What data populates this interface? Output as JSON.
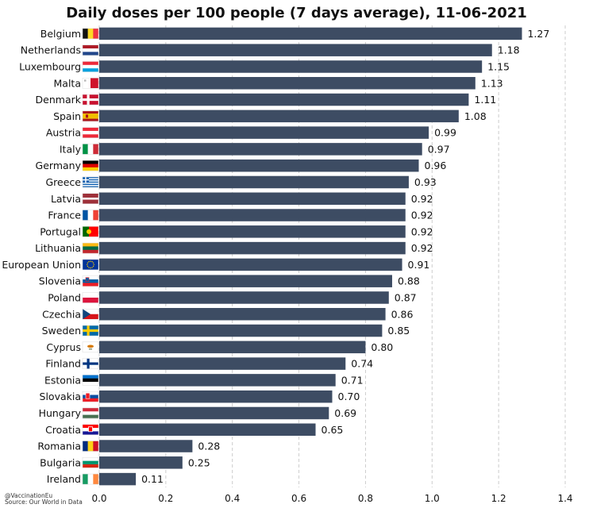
{
  "chart_data": {
    "type": "bar",
    "orientation": "horizontal",
    "title": "Daily doses per 100 people (7 days average), 11-06-2021",
    "xlabel": "",
    "ylabel": "",
    "xlim": [
      0,
      1.4
    ],
    "x_ticks": [
      "0.0",
      "0.2",
      "0.4",
      "0.6",
      "0.8",
      "1.0",
      "1.2",
      "1.4"
    ],
    "grid": "vertical dashed",
    "bar_color": "#3d4c63",
    "categories": [
      "Belgium",
      "Netherlands",
      "Luxembourg",
      "Malta",
      "Denmark",
      "Spain",
      "Austria",
      "Italy",
      "Germany",
      "Greece",
      "Latvia",
      "France",
      "Portugal",
      "Lithuania",
      "European Union",
      "Slovenia",
      "Poland",
      "Czechia",
      "Sweden",
      "Cyprus",
      "Finland",
      "Estonia",
      "Slovakia",
      "Hungary",
      "Croatia",
      "Romania",
      "Bulgaria",
      "Ireland"
    ],
    "values": [
      1.27,
      1.18,
      1.15,
      1.13,
      1.11,
      1.08,
      0.99,
      0.97,
      0.96,
      0.93,
      0.92,
      0.92,
      0.92,
      0.92,
      0.91,
      0.88,
      0.87,
      0.86,
      0.85,
      0.8,
      0.74,
      0.71,
      0.7,
      0.69,
      0.65,
      0.28,
      0.25,
      0.11
    ],
    "value_labels": [
      "1.27",
      "1.18",
      "1.15",
      "1.13",
      "1.11",
      "1.08",
      "0.99",
      "0.97",
      "0.96",
      "0.93",
      "0.92",
      "0.92",
      "0.92",
      "0.92",
      "0.91",
      "0.88",
      "0.87",
      "0.86",
      "0.85",
      "0.80",
      "0.74",
      "0.71",
      "0.70",
      "0.69",
      "0.65",
      "0.28",
      "0.25",
      "0.11"
    ],
    "flag_icons": [
      "belgium-flag-icon",
      "netherlands-flag-icon",
      "luxembourg-flag-icon",
      "malta-flag-icon",
      "denmark-flag-icon",
      "spain-flag-icon",
      "austria-flag-icon",
      "italy-flag-icon",
      "germany-flag-icon",
      "greece-flag-icon",
      "latvia-flag-icon",
      "france-flag-icon",
      "portugal-flag-icon",
      "lithuania-flag-icon",
      "european-union-flag-icon",
      "slovenia-flag-icon",
      "poland-flag-icon",
      "czechia-flag-icon",
      "sweden-flag-icon",
      "cyprus-flag-icon",
      "finland-flag-icon",
      "estonia-flag-icon",
      "slovakia-flag-icon",
      "hungary-flag-icon",
      "croatia-flag-icon",
      "romania-flag-icon",
      "bulgaria-flag-icon",
      "ireland-flag-icon"
    ]
  },
  "credits": {
    "handle": "@VaccinationEu",
    "source": "Source: Our World in Data"
  }
}
